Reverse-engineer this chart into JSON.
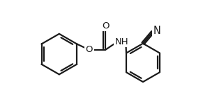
{
  "bg_color": "#ffffff",
  "line_color": "#1a1a1a",
  "figsize": [
    2.91,
    1.5
  ],
  "dpi": 100,
  "lw": 1.6,
  "font_size": 9.5,
  "xlim": [
    0,
    291
  ],
  "ylim": [
    0,
    150
  ]
}
